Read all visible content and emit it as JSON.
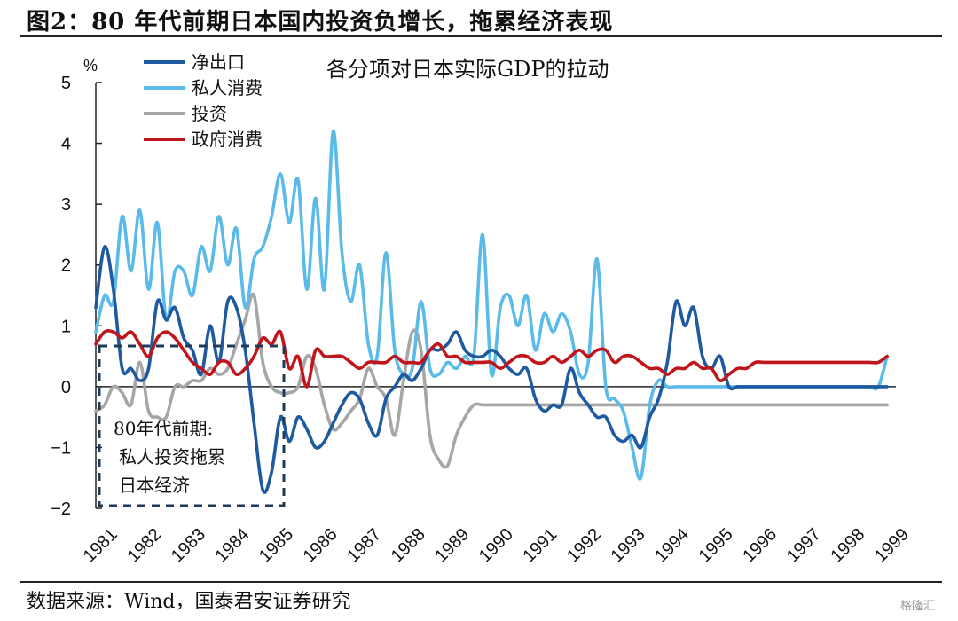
{
  "header": {
    "title": "图2：80 年代前期日本国内投资负增长，拖累经济表现"
  },
  "footer": {
    "source": "数据来源：Wind，国泰君安证券研究",
    "watermark": "格隆汇"
  },
  "chart_data": {
    "type": "line",
    "subtitle": "各分项对日本实际GDP的拉动",
    "y_unit": "%",
    "ylim": [
      -2,
      5
    ],
    "yticks": [
      "5",
      "4",
      "3",
      "2",
      "1",
      "0",
      "−1",
      "−2"
    ],
    "xlim": [
      1981,
      1999.2
    ],
    "xtick_labels": [
      "1981",
      "1982",
      "1983",
      "1984",
      "1985",
      "1986",
      "1987",
      "1988",
      "1989",
      "1990",
      "1991",
      "1992",
      "1993",
      "1994",
      "1995",
      "1996",
      "1997",
      "1998",
      "1999"
    ],
    "legend_position": "top-left",
    "annotation": [
      "80年代前期:",
      "私人投资拖累",
      "日本经济"
    ],
    "series": [
      {
        "name": "净出口",
        "color": "#1f5aa0",
        "x": [
          1981.0,
          1981.2,
          1981.4,
          1981.6,
          1981.8,
          1982.0,
          1982.2,
          1982.4,
          1982.6,
          1982.8,
          1983.0,
          1983.2,
          1983.4,
          1983.6,
          1983.8,
          1984.0,
          1984.2,
          1984.4,
          1984.6,
          1984.8,
          1985.0,
          1985.2,
          1985.4,
          1985.6,
          1985.8,
          1986.0,
          1986.2,
          1986.4,
          1986.6,
          1986.8,
          1987.0,
          1987.2,
          1987.4,
          1987.6,
          1987.8,
          1988.0,
          1988.2,
          1988.4,
          1988.6,
          1988.8,
          1989.0,
          1989.2,
          1989.4,
          1989.6,
          1989.8,
          1990.0,
          1990.2,
          1990.4,
          1990.6,
          1990.8,
          1991.0,
          1991.2,
          1991.4,
          1991.6,
          1991.8,
          1992.0,
          1992.2,
          1992.4,
          1992.6,
          1992.8,
          1993.0,
          1993.2,
          1993.4,
          1993.6,
          1993.8,
          1994.0,
          1994.2,
          1994.4,
          1994.6,
          1994.8,
          1995.0,
          1995.2,
          1995.4,
          1995.6,
          1995.8,
          1996.0,
          1996.2,
          1996.4,
          1996.6,
          1996.8,
          1997.0,
          1997.2,
          1997.4,
          1997.6,
          1997.8,
          1998.0,
          1998.2,
          1998.4,
          1998.6,
          1998.8,
          1999.0
        ],
        "y": [
          1.3,
          2.3,
          1.6,
          0.3,
          0.3,
          0.1,
          0.3,
          1.4,
          1.1,
          1.3,
          0.8,
          0.6,
          0.2,
          1.0,
          0.4,
          1.4,
          1.3,
          0.6,
          -0.6,
          -1.7,
          -1.4,
          -0.5,
          -0.9,
          -0.5,
          -0.7,
          -1.0,
          -0.9,
          -0.6,
          -0.3,
          -0.1,
          -0.2,
          -0.6,
          -0.8,
          -0.2,
          0.0,
          0.2,
          0.1,
          0.3,
          0.6,
          0.6,
          0.7,
          0.9,
          0.6,
          0.5,
          0.5,
          0.6,
          0.5,
          0.3,
          0.2,
          0.3,
          -0.2,
          -0.4,
          -0.3,
          -0.3,
          0.3,
          -0.1,
          -0.3,
          -0.5,
          -0.5,
          -0.8,
          -0.9,
          -0.8,
          -1.0,
          -0.5,
          -0.2,
          0.4,
          1.4,
          1.0,
          1.3,
          0.5,
          0.3,
          0.5,
          0.0,
          0.0,
          0.0,
          0.0,
          0.0,
          0.0,
          0.0,
          0.0,
          0.0,
          0.0,
          0.0,
          0.0,
          0.0,
          0.0,
          0.0,
          0.0,
          0.0,
          0.0,
          0.0
        ]
      },
      {
        "name": "私人消费",
        "color": "#5bbbe8",
        "x": [
          1981.0,
          1981.2,
          1981.4,
          1981.6,
          1981.8,
          1982.0,
          1982.2,
          1982.4,
          1982.6,
          1982.8,
          1983.0,
          1983.2,
          1983.4,
          1983.6,
          1983.8,
          1984.0,
          1984.2,
          1984.4,
          1984.6,
          1984.8,
          1985.0,
          1985.2,
          1985.4,
          1985.6,
          1985.8,
          1986.0,
          1986.2,
          1986.4,
          1986.6,
          1986.8,
          1987.0,
          1987.2,
          1987.4,
          1987.6,
          1987.8,
          1988.0,
          1988.2,
          1988.4,
          1988.6,
          1988.8,
          1989.0,
          1989.2,
          1989.4,
          1989.6,
          1989.8,
          1990.0,
          1990.2,
          1990.4,
          1990.6,
          1990.8,
          1991.0,
          1991.2,
          1991.4,
          1991.6,
          1991.8,
          1992.0,
          1992.2,
          1992.4,
          1992.6,
          1992.8,
          1993.0,
          1993.2,
          1993.4,
          1993.6,
          1993.8,
          1994.0,
          1994.2,
          1994.4,
          1994.6,
          1994.8,
          1995.0,
          1995.2,
          1995.4,
          1995.6,
          1995.8,
          1996.0,
          1996.2,
          1996.4,
          1996.6,
          1996.8,
          1997.0,
          1997.2,
          1997.4,
          1997.6,
          1997.8,
          1998.0,
          1998.2,
          1998.4,
          1998.6,
          1998.8,
          1999.0
        ],
        "y": [
          0.9,
          1.5,
          1.4,
          2.8,
          1.9,
          2.9,
          1.6,
          2.7,
          1.1,
          1.9,
          1.9,
          1.5,
          2.3,
          1.9,
          2.8,
          2.0,
          2.6,
          1.3,
          2.1,
          2.3,
          2.8,
          3.5,
          2.7,
          3.4,
          1.6,
          3.1,
          1.6,
          4.2,
          2.2,
          1.4,
          2.0,
          0.7,
          0.5,
          2.2,
          0.6,
          0.2,
          0.3,
          1.4,
          0.3,
          0.2,
          0.4,
          0.3,
          0.5,
          0.5,
          2.5,
          0.2,
          1.3,
          1.5,
          1.0,
          1.5,
          0.6,
          1.2,
          0.9,
          1.2,
          0.9,
          0.2,
          0.4,
          2.1,
          0.0,
          -0.2,
          -0.4,
          -1.0,
          -1.5,
          -0.3,
          0.1,
          0.0,
          0.0,
          0.0,
          0.0,
          0.0,
          0.0,
          0.0,
          0.0,
          0.0,
          0.0,
          0.0,
          0.0,
          0.0,
          0.0,
          0.0,
          0.0,
          0.0,
          0.0,
          0.0,
          0.0,
          0.0,
          0.0,
          0.0,
          0.0,
          0.0,
          0.5
        ]
      },
      {
        "name": "投资",
        "color": "#a6a6a6",
        "x": [
          1981.0,
          1981.2,
          1981.4,
          1981.6,
          1981.8,
          1982.0,
          1982.2,
          1982.4,
          1982.6,
          1982.8,
          1983.0,
          1983.2,
          1983.4,
          1983.6,
          1983.8,
          1984.0,
          1984.2,
          1984.4,
          1984.6,
          1984.8,
          1985.0,
          1985.2,
          1985.4,
          1985.6,
          1985.8,
          1986.0,
          1986.2,
          1986.4,
          1986.6,
          1986.8,
          1987.0,
          1987.2,
          1987.4,
          1987.6,
          1987.8,
          1988.0,
          1988.2,
          1988.4,
          1988.6,
          1988.8,
          1989.0,
          1989.2,
          1989.4,
          1989.6,
          1989.8,
          1990.0,
          1990.2,
          1990.4,
          1990.6,
          1990.8,
          1991.0,
          1991.2,
          1991.4,
          1991.6,
          1991.8,
          1992.0,
          1992.2,
          1992.4,
          1992.6,
          1992.8,
          1993.0,
          1993.2,
          1993.4,
          1993.6,
          1993.8,
          1994.0,
          1994.2,
          1994.4,
          1994.6,
          1994.8,
          1995.0,
          1995.2,
          1995.4,
          1995.6,
          1995.8,
          1996.0,
          1996.2,
          1996.4,
          1996.6,
          1996.8,
          1997.0,
          1997.2,
          1997.4,
          1997.6,
          1997.8,
          1998.0,
          1998.2,
          1998.4,
          1998.6,
          1998.8,
          1999.0
        ],
        "y": [
          -0.4,
          -0.3,
          0.0,
          -0.1,
          -0.3,
          0.4,
          -0.4,
          -0.5,
          -0.5,
          0.0,
          0.0,
          0.1,
          0.1,
          0.3,
          0.2,
          0.3,
          0.7,
          1.1,
          1.5,
          0.4,
          0.0,
          -0.1,
          -0.1,
          0.0,
          0.5,
          0.3,
          -0.3,
          -0.7,
          -0.6,
          -0.4,
          -0.2,
          0.3,
          0.0,
          -0.2,
          -0.8,
          0.1,
          0.9,
          0.6,
          -0.8,
          -1.2,
          -1.3,
          -0.8,
          -0.5,
          -0.3,
          -0.3,
          -0.3,
          -0.3,
          -0.3,
          -0.3,
          -0.3,
          -0.3,
          -0.3,
          -0.3,
          -0.3,
          -0.3,
          -0.3,
          -0.3,
          -0.3,
          -0.3,
          -0.3,
          -0.3,
          -0.3,
          -0.3,
          -0.3,
          -0.3,
          -0.3,
          -0.3,
          -0.3,
          -0.3,
          -0.3,
          -0.3,
          -0.3,
          -0.3,
          -0.3,
          -0.3,
          -0.3,
          -0.3,
          -0.3,
          -0.3,
          -0.3,
          -0.3,
          -0.3,
          -0.3,
          -0.3,
          -0.3,
          -0.3,
          -0.3,
          -0.3,
          -0.3,
          -0.3,
          -0.3
        ]
      },
      {
        "name": "政府消费",
        "color": "#c0151b",
        "x": [
          1981.0,
          1981.2,
          1981.4,
          1981.6,
          1981.8,
          1982.0,
          1982.2,
          1982.4,
          1982.6,
          1982.8,
          1983.0,
          1983.2,
          1983.4,
          1983.6,
          1983.8,
          1984.0,
          1984.2,
          1984.4,
          1984.6,
          1984.8,
          1985.0,
          1985.2,
          1985.4,
          1985.6,
          1985.8,
          1986.0,
          1986.2,
          1986.4,
          1986.6,
          1986.8,
          1987.0,
          1987.2,
          1987.4,
          1987.6,
          1987.8,
          1988.0,
          1988.2,
          1988.4,
          1988.6,
          1988.8,
          1989.0,
          1989.2,
          1989.4,
          1989.6,
          1989.8,
          1990.0,
          1990.2,
          1990.4,
          1990.6,
          1990.8,
          1991.0,
          1991.2,
          1991.4,
          1991.6,
          1991.8,
          1992.0,
          1992.2,
          1992.4,
          1992.6,
          1992.8,
          1993.0,
          1993.2,
          1993.4,
          1993.6,
          1993.8,
          1994.0,
          1994.2,
          1994.4,
          1994.6,
          1994.8,
          1995.0,
          1995.2,
          1995.4,
          1995.6,
          1995.8,
          1996.0,
          1996.2,
          1996.4,
          1996.6,
          1996.8,
          1997.0,
          1997.2,
          1997.4,
          1997.6,
          1997.8,
          1998.0,
          1998.2,
          1998.4,
          1998.6,
          1998.8,
          1999.0
        ],
        "y": [
          0.7,
          0.9,
          0.9,
          0.8,
          0.9,
          0.7,
          0.5,
          0.8,
          0.9,
          0.8,
          0.6,
          0.4,
          0.3,
          0.2,
          0.4,
          0.4,
          0.2,
          0.3,
          0.5,
          0.8,
          0.7,
          0.9,
          0.3,
          0.5,
          0.0,
          0.6,
          0.5,
          0.5,
          0.5,
          0.4,
          0.3,
          0.4,
          0.4,
          0.4,
          0.5,
          0.4,
          0.4,
          0.4,
          0.6,
          0.7,
          0.5,
          0.5,
          0.4,
          0.4,
          0.4,
          0.4,
          0.3,
          0.4,
          0.5,
          0.5,
          0.4,
          0.4,
          0.5,
          0.4,
          0.5,
          0.6,
          0.5,
          0.6,
          0.6,
          0.4,
          0.5,
          0.5,
          0.4,
          0.3,
          0.3,
          0.2,
          0.3,
          0.3,
          0.4,
          0.3,
          0.3,
          0.1,
          0.2,
          0.3,
          0.3,
          0.4,
          0.4,
          0.4,
          0.4,
          0.4,
          0.4,
          0.4,
          0.4,
          0.4,
          0.4,
          0.4,
          0.4,
          0.4,
          0.4,
          0.4,
          0.5
        ]
      }
    ]
  }
}
